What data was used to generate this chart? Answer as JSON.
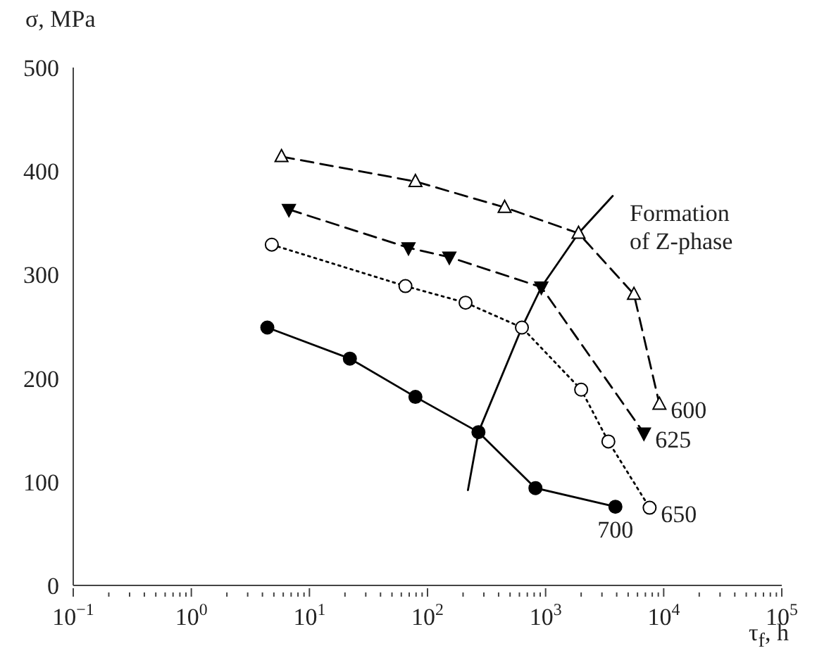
{
  "chart_data": {
    "type": "line",
    "xlabel": "τ$_{f}$, h",
    "ylabel": "σ, MPa",
    "log": "x",
    "xlim": [
      0.1,
      100000
    ],
    "ylim": [
      0,
      500
    ],
    "yticks": [
      0,
      100,
      200,
      300,
      400,
      500
    ],
    "xticks": [
      {
        "value": 0.1,
        "label": "10$^{−1}$"
      },
      {
        "value": 1,
        "label": "10$^{0}$"
      },
      {
        "value": 10,
        "label": "10$^{1}$"
      },
      {
        "value": 100,
        "label": "10$^{2}$"
      },
      {
        "value": 1000,
        "label": "10$^{3}$"
      },
      {
        "value": 10000,
        "label": "10$^{4}$"
      },
      {
        "value": 100000,
        "label": "10$^{5}$"
      },
      {
        "value": 0.2,
        "label": null
      },
      {
        "value": 0.3,
        "label": null
      },
      {
        "value": 0.4,
        "label": null
      },
      {
        "value": 0.5,
        "label": null
      },
      {
        "value": 0.6,
        "label": null
      },
      {
        "value": 0.7,
        "label": null
      },
      {
        "value": 0.8,
        "label": null
      },
      {
        "value": 0.9,
        "label": null
      },
      {
        "value": 2,
        "label": null
      },
      {
        "value": 3,
        "label": null
      },
      {
        "value": 4,
        "label": null
      },
      {
        "value": 5,
        "label": null
      },
      {
        "value": 6,
        "label": null
      },
      {
        "value": 7,
        "label": null
      },
      {
        "value": 8,
        "label": null
      },
      {
        "value": 9,
        "label": null
      },
      {
        "value": 20,
        "label": null
      },
      {
        "value": 30,
        "label": null
      },
      {
        "value": 40,
        "label": null
      },
      {
        "value": 50,
        "label": null
      },
      {
        "value": 60,
        "label": null
      },
      {
        "value": 70,
        "label": null
      },
      {
        "value": 80,
        "label": null
      },
      {
        "value": 90,
        "label": null
      },
      {
        "value": 200,
        "label": null
      },
      {
        "value": 300,
        "label": null
      },
      {
        "value": 400,
        "label": null
      },
      {
        "value": 500,
        "label": null
      },
      {
        "value": 600,
        "label": null
      },
      {
        "value": 700,
        "label": null
      },
      {
        "value": 800,
        "label": null
      },
      {
        "value": 900,
        "label": null
      },
      {
        "value": 2000,
        "label": null
      },
      {
        "value": 3000,
        "label": null
      },
      {
        "value": 4000,
        "label": null
      },
      {
        "value": 5000,
        "label": null
      },
      {
        "value": 6000,
        "label": null
      },
      {
        "value": 7000,
        "label": null
      },
      {
        "value": 8000,
        "label": null
      },
      {
        "value": 9000,
        "label": null
      },
      {
        "value": 20000,
        "label": null
      },
      {
        "value": 30000,
        "label": null
      },
      {
        "value": 40000,
        "label": null
      },
      {
        "value": 50000,
        "label": null
      },
      {
        "value": 60000,
        "label": null
      },
      {
        "value": 70000,
        "label": null
      },
      {
        "value": 80000,
        "label": null
      },
      {
        "value": 90000,
        "label": null
      }
    ],
    "series": [
      {
        "name": "600",
        "color": "#000000",
        "marker": "triangle",
        "line_style": "dashed",
        "x": [
          5.8,
          79,
          450,
          1900,
          5600,
          9200
        ],
        "values": [
          414,
          390,
          365,
          340,
          281,
          175
        ]
      },
      {
        "name": "625",
        "color": "#000000",
        "marker": "triangle",
        "line_style": "dashed",
        "x": [
          6.7,
          69,
          153,
          920,
          6800
        ],
        "values": [
          363,
          326,
          317,
          288,
          147
        ]
      },
      {
        "name": "650",
        "color": "#000000",
        "marker": "circle",
        "line_style": "dotted",
        "x": [
          4.8,
          65,
          210,
          630,
          2000,
          3400,
          7600
        ],
        "values": [
          329,
          289,
          273,
          249,
          189,
          139,
          75
        ]
      },
      {
        "name": "700",
        "color": "#000000",
        "marker": "circle",
        "line_style": "solid",
        "x": [
          4.4,
          22,
          79,
          270,
          820,
          3900
        ],
        "values": [
          249,
          219,
          182,
          148,
          94,
          76
        ]
      },
      {
        "type": "line",
        "color": "#000000",
        "marker": "none",
        "line_style": "solid",
        "x": [
          220,
          270,
          630,
          920,
          1900,
          3700
        ],
        "values": [
          92,
          148,
          249,
          288,
          340,
          376
        ]
      }
    ],
    "annotations": [
      "Formation\nof Z-phase"
    ]
  }
}
